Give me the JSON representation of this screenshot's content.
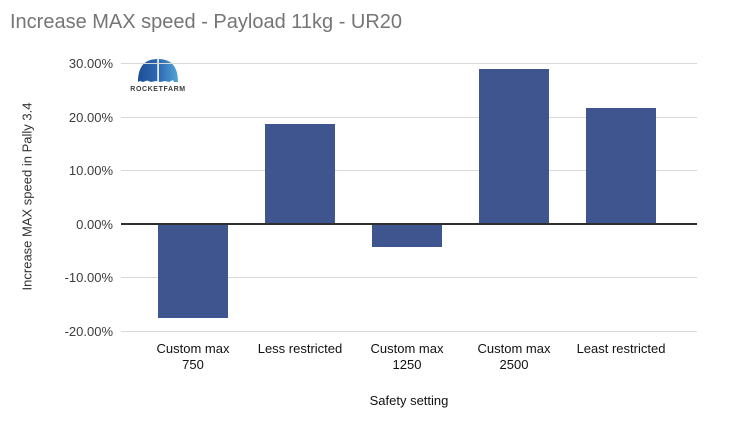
{
  "logo": {
    "text": "ROCKETFARM"
  },
  "colors": {
    "bar": "#3E5590",
    "grid": "#D9D9D9",
    "zero_line": "#2E2E2E",
    "title_text": "#757575",
    "tick_text": "#3C3C3C",
    "logo_blue_dark": "#1E4F97",
    "logo_blue_light": "#52A5D8"
  },
  "chart_data": {
    "type": "bar",
    "title": "Increase MAX speed - Payload 11kg - UR20",
    "xlabel": "Safety setting",
    "ylabel": "Increase MAX speed in Pally 3.4",
    "categories": [
      "Custom max\n750",
      "Less restricted",
      "Custom max\n1250",
      "Custom max\n2500",
      "Least restricted"
    ],
    "values": [
      -17.5,
      18.7,
      -4.3,
      28.8,
      21.6
    ],
    "series_name": "Increase MAX speed",
    "ylim": [
      -20,
      30
    ],
    "yticks": [
      {
        "value": 30,
        "label": "30.00%"
      },
      {
        "value": 20,
        "label": "20.00%"
      },
      {
        "value": 10,
        "label": "10.00%"
      },
      {
        "value": 0,
        "label": "0.00%"
      },
      {
        "value": -10,
        "label": "-10.00%"
      },
      {
        "value": -20,
        "label": "-20.00%"
      }
    ],
    "grid": true,
    "legend": false
  }
}
